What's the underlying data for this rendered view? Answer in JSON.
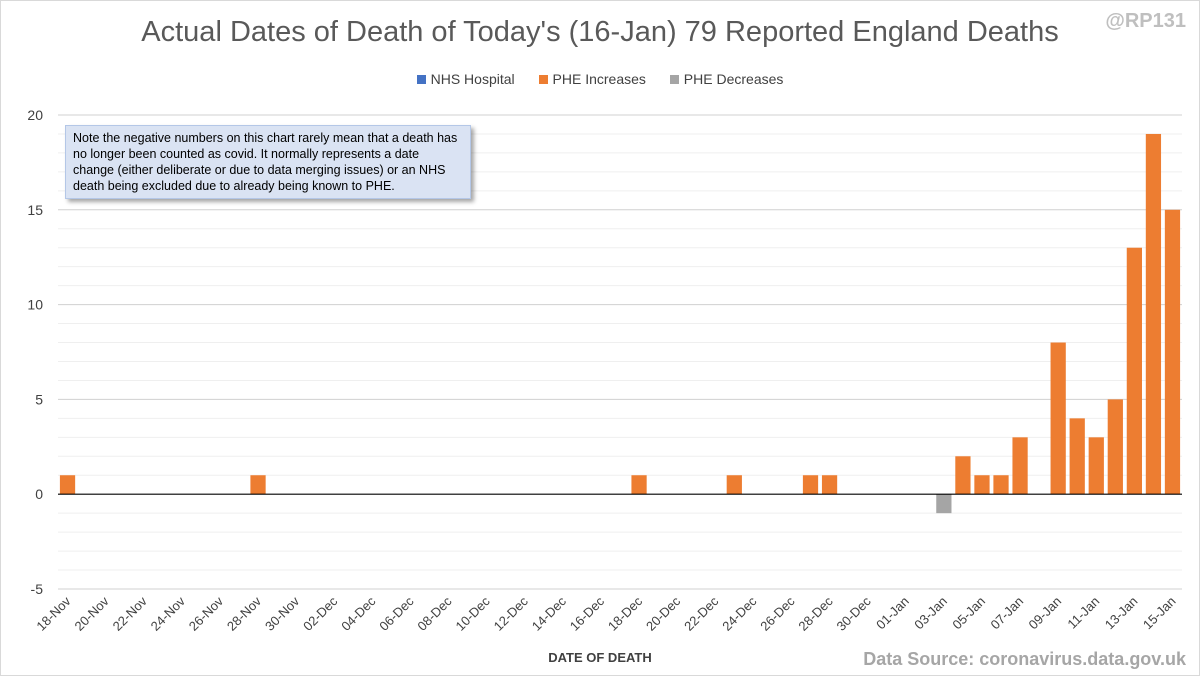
{
  "handle": "@RP131",
  "source": "Data Source: coronavirus.data.gov.uk",
  "note": "Note the negative numbers on this chart rarely mean that a death has no longer been counted as covid. It normally represents a date change (either deliberate or due to data merging issues) or an NHS death being excluded due to already being known to PHE.",
  "chart_data": {
    "type": "bar",
    "title": "Actual Dates of Death of Today's (16-Jan) 79 Reported England Deaths",
    "xlabel": "DATE OF DEATH",
    "ylabel": "",
    "ylim": [
      -5,
      20
    ],
    "yticks": [
      -5,
      0,
      5,
      10,
      15,
      20
    ],
    "x_tick_labels": [
      "18-Nov",
      "20-Nov",
      "22-Nov",
      "24-Nov",
      "26-Nov",
      "28-Nov",
      "30-Nov",
      "02-Dec",
      "04-Dec",
      "06-Dec",
      "08-Dec",
      "10-Dec",
      "12-Dec",
      "14-Dec",
      "16-Dec",
      "18-Dec",
      "20-Dec",
      "22-Dec",
      "24-Dec",
      "26-Dec",
      "28-Dec",
      "30-Dec",
      "01-Jan",
      "03-Jan",
      "05-Jan",
      "07-Jan",
      "09-Jan",
      "11-Jan",
      "13-Jan",
      "15-Jan"
    ],
    "categories": [
      "18-Nov",
      "19-Nov",
      "20-Nov",
      "21-Nov",
      "22-Nov",
      "23-Nov",
      "24-Nov",
      "25-Nov",
      "26-Nov",
      "27-Nov",
      "28-Nov",
      "29-Nov",
      "30-Nov",
      "01-Dec",
      "02-Dec",
      "03-Dec",
      "04-Dec",
      "05-Dec",
      "06-Dec",
      "07-Dec",
      "08-Dec",
      "09-Dec",
      "10-Dec",
      "11-Dec",
      "12-Dec",
      "13-Dec",
      "14-Dec",
      "15-Dec",
      "16-Dec",
      "17-Dec",
      "18-Dec",
      "19-Dec",
      "20-Dec",
      "21-Dec",
      "22-Dec",
      "23-Dec",
      "24-Dec",
      "25-Dec",
      "26-Dec",
      "27-Dec",
      "28-Dec",
      "29-Dec",
      "30-Dec",
      "31-Dec",
      "01-Jan",
      "02-Jan",
      "03-Jan",
      "04-Jan",
      "05-Jan",
      "06-Jan",
      "07-Jan",
      "08-Jan",
      "09-Jan",
      "10-Jan",
      "11-Jan",
      "12-Jan",
      "13-Jan",
      "14-Jan",
      "15-Jan"
    ],
    "series": [
      {
        "name": "NHS Hospital",
        "color": "#4472c4",
        "values": [
          0,
          0,
          0,
          0,
          0,
          0,
          0,
          0,
          0,
          0,
          0,
          0,
          0,
          0,
          0,
          0,
          0,
          0,
          0,
          0,
          0,
          0,
          0,
          0,
          0,
          0,
          0,
          0,
          0,
          0,
          0,
          0,
          0,
          0,
          0,
          0,
          0,
          0,
          0,
          0,
          0,
          0,
          0,
          0,
          0,
          0,
          0,
          0,
          0,
          0,
          0,
          0,
          0,
          0,
          0,
          0,
          0,
          0,
          0
        ]
      },
      {
        "name": "PHE Increases",
        "color": "#ed7d31",
        "values": [
          1,
          0,
          0,
          0,
          0,
          0,
          0,
          0,
          0,
          0,
          1,
          0,
          0,
          0,
          0,
          0,
          0,
          0,
          0,
          0,
          0,
          0,
          0,
          0,
          0,
          0,
          0,
          0,
          0,
          0,
          1,
          0,
          0,
          0,
          0,
          1,
          0,
          0,
          0,
          1,
          1,
          0,
          0,
          0,
          0,
          0,
          0,
          2,
          1,
          1,
          3,
          0,
          8,
          4,
          3,
          5,
          13,
          19,
          15
        ]
      },
      {
        "name": "PHE Decreases",
        "color": "#a5a5a5",
        "values": [
          0,
          0,
          0,
          0,
          0,
          0,
          0,
          0,
          0,
          0,
          0,
          0,
          0,
          0,
          0,
          0,
          0,
          0,
          0,
          0,
          0,
          0,
          0,
          0,
          0,
          0,
          0,
          0,
          0,
          0,
          0,
          0,
          0,
          0,
          0,
          0,
          0,
          0,
          0,
          0,
          0,
          0,
          0,
          0,
          0,
          0,
          -1,
          0,
          0,
          0,
          0,
          0,
          0,
          0,
          0,
          0,
          0,
          0,
          0
        ]
      }
    ]
  }
}
